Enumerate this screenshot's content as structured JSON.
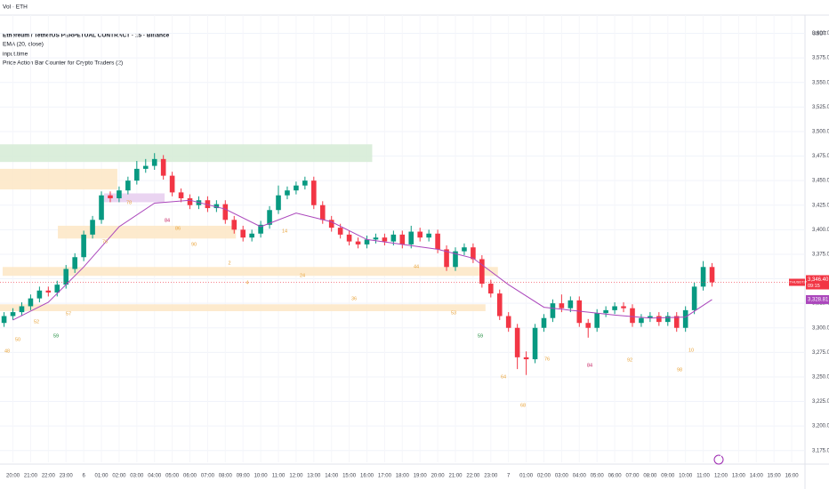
{
  "chart_data": {
    "type": "candlestick",
    "top_bar": "Vol · ETH",
    "title": "Ethereum / TetherUS PERPETUAL CONTRACT · 15 · Binance",
    "indicators": [
      "EMA (20, close)",
      "input.time",
      "Price Action Bar Counter for Crypto Traders (2)"
    ],
    "y_unit": "USDT",
    "symbol_tag": "ETHUSDT.P",
    "last_close_label": "3,346.40",
    "countdown": "09:15",
    "up_color": "#089981",
    "down_color": "#f23645",
    "grid": true,
    "xlim": [
      -0.73,
      44.75
    ],
    "ylim": [
      3163,
      3634
    ],
    "x": [
      -0.5,
      0,
      0.5,
      1,
      1.5,
      2,
      2.5,
      3,
      3.5,
      4,
      4.5,
      5,
      5.5,
      6,
      6.5,
      7,
      7.5,
      8,
      8.5,
      9,
      9.5,
      10,
      10.5,
      11,
      11.5,
      12,
      12.5,
      13,
      13.5,
      14,
      14.5,
      15,
      15.5,
      16,
      16.5,
      17,
      17.5,
      18,
      18.5,
      19,
      19.5,
      20,
      20.5,
      21,
      21.5,
      22,
      22.5,
      23,
      23.5,
      24,
      24.5,
      25,
      25.5,
      26,
      26.5,
      27,
      27.5,
      28,
      28.5,
      29,
      29.5,
      30,
      30.5,
      31,
      31.5,
      32,
      32.5,
      33,
      33.5,
      34,
      34.5,
      35,
      35.5,
      36,
      36.5,
      37,
      37.5,
      38,
      38.5,
      39,
      39.5
    ],
    "open": [
      3305,
      3312,
      3316,
      3322,
      3330,
      3338,
      3336,
      3344,
      3360,
      3372,
      3395,
      3410,
      3435,
      3432,
      3440,
      3450,
      3462,
      3465,
      3472,
      3455,
      3438,
      3432,
      3425,
      3430,
      3422,
      3426,
      3410,
      3400,
      3392,
      3396,
      3405,
      3420,
      3435,
      3440,
      3445,
      3450,
      3425,
      3410,
      3402,
      3395,
      3388,
      3385,
      3390,
      3392,
      3388,
      3395,
      3385,
      3398,
      3392,
      3396,
      3380,
      3362,
      3378,
      3382,
      3370,
      3345,
      3335,
      3312,
      3300,
      3270,
      3268,
      3300,
      3310,
      3325,
      3320,
      3328,
      3305,
      3300,
      3315,
      3318,
      3322,
      3320,
      3305,
      3310,
      3312,
      3306,
      3312,
      3300,
      3318,
      3342,
      3362
    ],
    "high": [
      3316,
      3320,
      3326,
      3334,
      3342,
      3342,
      3348,
      3364,
      3376,
      3399,
      3414,
      3439,
      3439,
      3444,
      3454,
      3470,
      3472,
      3478,
      3476,
      3459,
      3442,
      3436,
      3434,
      3434,
      3430,
      3430,
      3414,
      3404,
      3400,
      3409,
      3424,
      3445,
      3444,
      3449,
      3454,
      3454,
      3429,
      3414,
      3406,
      3399,
      3392,
      3394,
      3396,
      3396,
      3399,
      3399,
      3404,
      3402,
      3400,
      3400,
      3384,
      3382,
      3386,
      3386,
      3374,
      3349,
      3339,
      3316,
      3304,
      3276,
      3304,
      3314,
      3329,
      3334,
      3332,
      3332,
      3309,
      3319,
      3322,
      3326,
      3326,
      3324,
      3314,
      3316,
      3316,
      3316,
      3316,
      3322,
      3346,
      3368,
      3366
    ],
    "low": [
      3301,
      3308,
      3312,
      3318,
      3326,
      3332,
      3332,
      3340,
      3356,
      3368,
      3391,
      3406,
      3428,
      3428,
      3436,
      3446,
      3458,
      3461,
      3451,
      3434,
      3428,
      3421,
      3421,
      3418,
      3418,
      3406,
      3396,
      3388,
      3388,
      3392,
      3401,
      3416,
      3431,
      3436,
      3441,
      3421,
      3406,
      3398,
      3391,
      3384,
      3381,
      3381,
      3386,
      3384,
      3384,
      3381,
      3381,
      3388,
      3388,
      3376,
      3358,
      3358,
      3374,
      3366,
      3341,
      3331,
      3308,
      3296,
      3258,
      3252,
      3264,
      3296,
      3306,
      3316,
      3316,
      3301,
      3290,
      3296,
      3311,
      3314,
      3316,
      3301,
      3301,
      3306,
      3302,
      3302,
      3296,
      3296,
      3314,
      3338,
      3342
    ],
    "close": [
      3312,
      3316,
      3322,
      3330,
      3338,
      3336,
      3344,
      3360,
      3372,
      3395,
      3410,
      3435,
      3432,
      3440,
      3450,
      3462,
      3465,
      3472,
      3455,
      3438,
      3432,
      3425,
      3430,
      3422,
      3426,
      3410,
      3400,
      3392,
      3396,
      3405,
      3420,
      3435,
      3440,
      3445,
      3450,
      3425,
      3410,
      3402,
      3395,
      3388,
      3385,
      3390,
      3392,
      3388,
      3395,
      3385,
      3398,
      3392,
      3396,
      3380,
      3362,
      3378,
      3382,
      3370,
      3345,
      3335,
      3312,
      3300,
      3270,
      3268,
      3300,
      3310,
      3325,
      3320,
      3328,
      3305,
      3300,
      3315,
      3318,
      3322,
      3320,
      3305,
      3310,
      3312,
      3306,
      3312,
      3300,
      3318,
      3342,
      3362,
      3346.4
    ],
    "ema": {
      "color": "#ab47bc",
      "last_label": "3,328.81",
      "x": [
        0,
        2,
        4,
        6,
        8,
        10,
        12,
        14,
        16,
        18,
        20,
        22,
        24,
        26,
        28,
        30,
        32,
        34,
        36,
        38,
        39.5
      ],
      "values": [
        3308,
        3326,
        3362,
        3403,
        3427,
        3430,
        3421,
        3403,
        3417,
        3408,
        3390,
        3385,
        3380,
        3371,
        3344,
        3321,
        3317,
        3313,
        3310,
        3311,
        3328.81
      ]
    },
    "zones": [
      {
        "x": [
          -0.73,
          20.3
        ],
        "y": [
          3469,
          3487
        ],
        "color": "#d5ebd5"
      },
      {
        "x": [
          -0.73,
          5.9
        ],
        "y": [
          3441,
          3462
        ],
        "color": "#fde6c4"
      },
      {
        "x": [
          5.15,
          8.57
        ],
        "y": [
          3428,
          3437
        ],
        "color": "#e6cdee"
      },
      {
        "x": [
          2.54,
          12.6
        ],
        "y": [
          3391,
          3404
        ],
        "color": "#fde6c4"
      },
      {
        "x": [
          -0.58,
          27.4
        ],
        "y": [
          3353,
          3362
        ],
        "color": "#fde6c4"
      },
      {
        "x": [
          -0.73,
          26.7
        ],
        "y": [
          3317,
          3324
        ],
        "color": "#fde6c4"
      }
    ],
    "bar_counts": [
      {
        "text": "48",
        "color": "#e8a33a"
      },
      {
        "text": "50",
        "color": "#e8a33a"
      },
      {
        "text": "52",
        "color": "#e8a33a"
      },
      {
        "text": "59",
        "color": "#1b8a3a"
      },
      {
        "text": "57",
        "color": "#e8a33a"
      },
      {
        "text": "76",
        "color": "#e8a33a"
      },
      {
        "text": "78",
        "color": "#e8a33a"
      },
      {
        "text": "84",
        "color": "#c2185b"
      },
      {
        "text": "86",
        "color": "#e8a33a"
      },
      {
        "text": "90",
        "color": "#e8a33a"
      },
      {
        "text": "2",
        "color": "#e8a33a"
      },
      {
        "text": "4",
        "color": "#e8a33a"
      },
      {
        "text": "14",
        "color": "#e8a33a"
      },
      {
        "text": "24",
        "color": "#e8a33a"
      },
      {
        "text": "36",
        "color": "#e8a33a"
      },
      {
        "text": "44",
        "color": "#e8a33a"
      },
      {
        "text": "53",
        "color": "#e8a33a"
      },
      {
        "text": "59",
        "color": "#1b8a3a"
      },
      {
        "text": "64",
        "color": "#e8a33a"
      },
      {
        "text": "68",
        "color": "#e8a33a"
      },
      {
        "text": "76",
        "color": "#e8a33a"
      },
      {
        "text": "84",
        "color": "#c2185b"
      },
      {
        "text": "92",
        "color": "#e8a33a"
      },
      {
        "text": "98",
        "color": "#e8a33a"
      },
      {
        "text": "10",
        "color": "#e8a33a"
      }
    ],
    "yticks": [
      {
        "value": 3600,
        "label": "3,600.00"
      },
      {
        "value": 3575,
        "label": "3,575.00"
      },
      {
        "value": 3550,
        "label": "3,550.00"
      },
      {
        "value": 3525,
        "label": "3,525.00"
      },
      {
        "value": 3500,
        "label": "3,500.00"
      },
      {
        "value": 3475,
        "label": "3,475.00"
      },
      {
        "value": 3450,
        "label": "3,450.00"
      },
      {
        "value": 3425,
        "label": "3,425.00"
      },
      {
        "value": 3400,
        "label": "3,400.00"
      },
      {
        "value": 3375,
        "label": "3,375.00"
      },
      {
        "value": 3350,
        "label": "3,350.00"
      },
      {
        "value": 3325,
        "label": "3,325.00"
      },
      {
        "value": 3300,
        "label": "3,300.00"
      },
      {
        "value": 3275,
        "label": "3,275.00"
      },
      {
        "value": 3250,
        "label": "3,250.00"
      },
      {
        "value": 3225,
        "label": "3,225.00"
      },
      {
        "value": 3200,
        "label": "3,200.00"
      },
      {
        "value": 3175,
        "label": "3,175.00"
      }
    ],
    "xticks": [
      {
        "value": 0,
        "label": "20:00"
      },
      {
        "value": 1,
        "label": "21:00"
      },
      {
        "value": 2,
        "label": "22:00"
      },
      {
        "value": 3,
        "label": "23:00"
      },
      {
        "value": 4,
        "label": "6"
      },
      {
        "value": 5,
        "label": "01:00"
      },
      {
        "value": 6,
        "label": "02:00"
      },
      {
        "value": 7,
        "label": "03:00"
      },
      {
        "value": 8,
        "label": "04:00"
      },
      {
        "value": 9,
        "label": "05:00"
      },
      {
        "value": 10,
        "label": "06:00"
      },
      {
        "value": 11,
        "label": "07:00"
      },
      {
        "value": 12,
        "label": "08:00"
      },
      {
        "value": 13,
        "label": "09:00"
      },
      {
        "value": 14,
        "label": "10:00"
      },
      {
        "value": 15,
        "label": "11:00"
      },
      {
        "value": 16,
        "label": "12:00"
      },
      {
        "value": 17,
        "label": "13:00"
      },
      {
        "value": 18,
        "label": "14:00"
      },
      {
        "value": 19,
        "label": "15:00"
      },
      {
        "value": 20,
        "label": "16:00"
      },
      {
        "value": 21,
        "label": "17:00"
      },
      {
        "value": 22,
        "label": "18:00"
      },
      {
        "value": 23,
        "label": "19:00"
      },
      {
        "value": 24,
        "label": "20:00"
      },
      {
        "value": 25,
        "label": "21:00"
      },
      {
        "value": 26,
        "label": "22:00"
      },
      {
        "value": 27,
        "label": "23:00"
      },
      {
        "value": 28,
        "label": "7"
      },
      {
        "value": 29,
        "label": "01:00"
      },
      {
        "value": 30,
        "label": "02:00"
      },
      {
        "value": 31,
        "label": "03:00"
      },
      {
        "value": 32,
        "label": "04:00"
      },
      {
        "value": 33,
        "label": "05:00"
      },
      {
        "value": 34,
        "label": "06:00"
      },
      {
        "value": 35,
        "label": "07:00"
      },
      {
        "value": 36,
        "label": "08:00"
      },
      {
        "value": 37,
        "label": "09:00"
      },
      {
        "value": 38,
        "label": "10:00"
      },
      {
        "value": 39,
        "label": "11:00"
      },
      {
        "value": 40,
        "label": "12:00"
      },
      {
        "value": 41,
        "label": "13:00"
      },
      {
        "value": 42,
        "label": "14:00"
      },
      {
        "value": 43,
        "label": "15:00"
      },
      {
        "value": 44,
        "label": "16:00"
      }
    ]
  }
}
